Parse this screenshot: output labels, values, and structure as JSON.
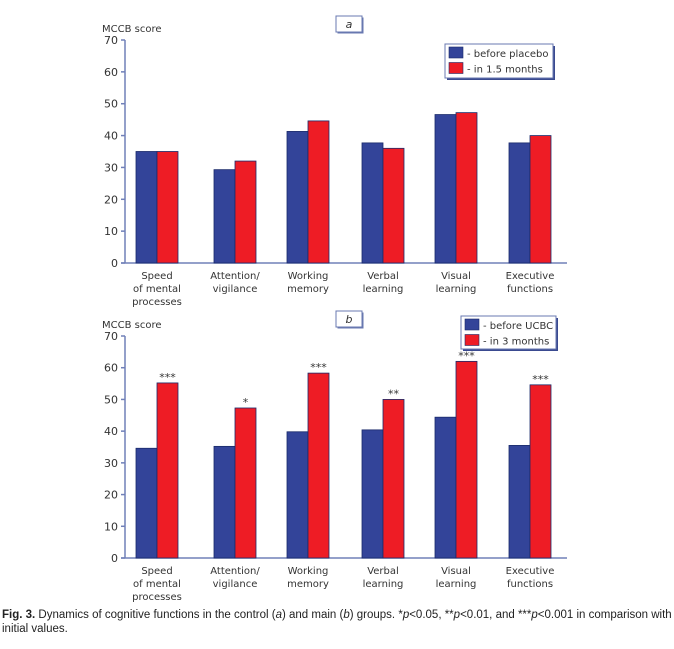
{
  "chart_data": [
    {
      "type": "bar",
      "panel_label": "a",
      "ylabel": "MCCB score",
      "ylim": [
        0,
        70
      ],
      "yticks": [
        0,
        10,
        20,
        30,
        40,
        50,
        60,
        70
      ],
      "legend_position": "top-right",
      "categories": [
        "Speed\nof mental\nprocesses",
        "Attention/\nvigilance",
        "Working\nmemory",
        "Verbal\nlearning",
        "Visual\nlearning",
        "Executive\nfunctions"
      ],
      "series": [
        {
          "name": "- before placebo",
          "color": "#334499",
          "values": [
            35,
            29.3,
            41.3,
            37.7,
            46.6,
            37.7
          ]
        },
        {
          "name": "- in 1.5 months",
          "color": "#ee1c25",
          "values": [
            35,
            32,
            44.6,
            36,
            47.2,
            40
          ]
        }
      ],
      "annotations": [
        "",
        "",
        "",
        "",
        "",
        ""
      ]
    },
    {
      "type": "bar",
      "panel_label": "b",
      "ylabel": "MCCB score",
      "ylim": [
        0,
        70
      ],
      "yticks": [
        0,
        10,
        20,
        30,
        40,
        50,
        60,
        70
      ],
      "legend_position": "top-right",
      "categories": [
        "Speed\nof mental\nprocesses",
        "Attention/\nvigilance",
        "Working\nmemory",
        "Verbal\nlearning",
        "Visual\nlearning",
        "Executive\nfunctions"
      ],
      "series": [
        {
          "name": "- before UCBC",
          "color": "#334499",
          "values": [
            34.6,
            35.2,
            39.8,
            40.4,
            44.4,
            35.5
          ]
        },
        {
          "name": "- in 3 months",
          "color": "#ee1c25",
          "values": [
            55.2,
            47.3,
            58.3,
            50,
            62,
            54.6
          ]
        }
      ],
      "annotations": [
        "***",
        "*",
        "***",
        "**",
        "***",
        "***"
      ]
    }
  ],
  "caption": {
    "label": "Fig. 3.",
    "p1": " Dynamics of cognitive functions in the control (",
    "a": "a",
    "p2": ") and main (",
    "b": "b",
    "p3": ") groups. *",
    "p": "p",
    "p4": "<0.05, **",
    "p5": "<0.01, and ***",
    "p6": "<0.001 in comparison with initial values."
  }
}
